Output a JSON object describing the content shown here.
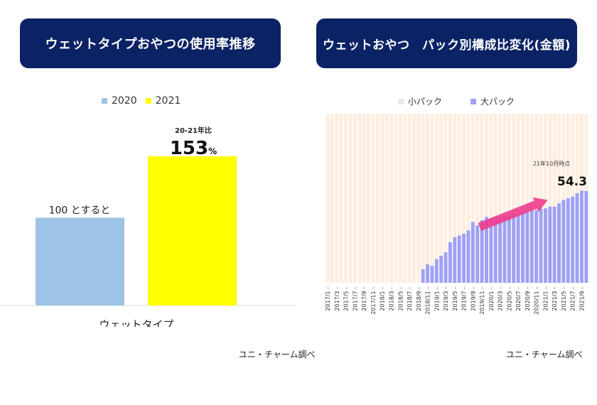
{
  "left_panel": {
    "title": "ウェットタイプおやつの使用率推移",
    "source": "ユニ・チャーム調べ"
  },
  "right_panel": {
    "title": "ウェットおやつ　パック別構成比変化(金額)",
    "source": "ユニ・チャーム調べ",
    "annotation_label": "21年10月時点",
    "annotation_value": "54.3"
  },
  "colors": {
    "title_bg": "#0b2265",
    "bar_2020": "#9dc3e6",
    "bar_2021": "#ffff00",
    "small_pack": "#fdeee0",
    "large_pack": "#a0a0f5",
    "arrow": "#ee3c8c"
  },
  "chart_data": [
    {
      "type": "bar",
      "title": "ウェットタイプおやつの使用率推移",
      "categories": [
        "ウェットタイプ"
      ],
      "series": [
        {
          "name": "2020",
          "values": [
            100
          ],
          "label": "100 とすると"
        },
        {
          "name": "2021",
          "values": [
            153
          ],
          "label": "153",
          "label_unit": "%",
          "sublabel": "20-21年比"
        }
      ],
      "legend": [
        "2020",
        "2021"
      ],
      "legend_position": "top",
      "ylim": [
        0,
        200
      ],
      "grid": false
    },
    {
      "type": "bar",
      "stacked": "percent",
      "title": "ウェットおやつ　パック別構成比変化(金額)",
      "x": [
        "2017/1",
        "2017/2",
        "2017/3",
        "2017/4",
        "2017/5",
        "2017/6",
        "2017/7",
        "2017/8",
        "2017/9",
        "2017/10",
        "2017/11",
        "2017/12",
        "2018/1",
        "2018/2",
        "2018/3",
        "2018/4",
        "2018/5",
        "2018/6",
        "2018/7",
        "2018/8",
        "2018/9",
        "2018/10",
        "2018/11",
        "2018/12",
        "2019/1",
        "2019/2",
        "2019/3",
        "2019/4",
        "2019/5",
        "2019/6",
        "2019/7",
        "2019/8",
        "2019/9",
        "2019/10",
        "2019/11",
        "2019/12",
        "2020/1",
        "2020/2",
        "2020/3",
        "2020/4",
        "2020/5",
        "2020/6",
        "2020/7",
        "2020/8",
        "2020/9",
        "2020/10",
        "2020/11",
        "2020/12",
        "2021/1",
        "2021/2",
        "2021/3",
        "2021/4",
        "2021/5",
        "2021/6",
        "2021/7",
        "2021/8",
        "2021/9",
        "2021/10"
      ],
      "tick_labels": [
        "2017/1",
        "2017/3",
        "2017/5",
        "2017/7",
        "2017/9",
        "2017/11",
        "2018/1",
        "2018/3",
        "2018/5",
        "2018/7",
        "2018/9",
        "2018/11",
        "2019/1",
        "2019/3",
        "2019/5",
        "2019/7",
        "2019/9",
        "2019/11",
        "2020/1",
        "2020/3",
        "2020/5",
        "2020/7",
        "2020/9",
        "2020/11",
        "2021/1",
        "2021/3",
        "2021/5",
        "2021/7",
        "2021/9"
      ],
      "series": [
        {
          "name": "大パック",
          "values": [
            0,
            0,
            0,
            0,
            0,
            0,
            0,
            0,
            0,
            0,
            0,
            0,
            0,
            0,
            0,
            0,
            0,
            0,
            0,
            0,
            0,
            8,
            11,
            10,
            14,
            16,
            18,
            24,
            27,
            28,
            29,
            31,
            36,
            34,
            37,
            39,
            38,
            39,
            39,
            40,
            40,
            41,
            41,
            42,
            42,
            43,
            43,
            44,
            44,
            45,
            45,
            47,
            49,
            50,
            51,
            53,
            54.5,
            54.3
          ]
        },
        {
          "name": "小パック",
          "values": "remainder to 100%"
        }
      ],
      "legend": [
        "小パック",
        "大パック"
      ],
      "legend_position": "top",
      "ylim": [
        0,
        100
      ],
      "annotations": [
        {
          "text": "21年10月時点",
          "value": "54.3"
        }
      ]
    }
  ]
}
